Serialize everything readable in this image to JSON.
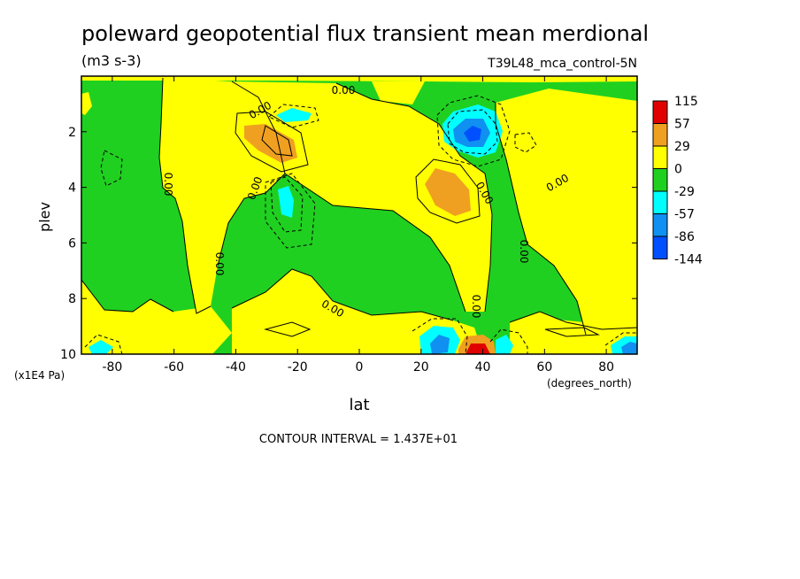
{
  "chart_data": {
    "type": "contour",
    "title": "poleward geopotential flux transient mean merdional",
    "units": "(m3 s-3)",
    "experiment": "T39L48_mca_control-5N",
    "xlabel": "lat",
    "xunits": "(degrees_north)",
    "ylabel": "plev",
    "yunits": "(x1E4 Pa)",
    "xlim": [
      -90,
      90
    ],
    "ylim": [
      0,
      10
    ],
    "yaxis_inverted": true,
    "xticks": [
      "-80",
      "-60",
      "-40",
      "-20",
      "0",
      "20",
      "40",
      "60",
      "80"
    ],
    "xtick_values": [
      -80,
      -60,
      -40,
      -20,
      0,
      20,
      40,
      60,
      80
    ],
    "yticks": [
      "2",
      "4",
      "6",
      "8",
      "10"
    ],
    "ytick_values": [
      2,
      4,
      6,
      8,
      10
    ],
    "contour_interval": "CONTOUR INTERVAL = 1.437E+01",
    "contour_label": "0.00",
    "colorbar": {
      "labels": [
        "115",
        "57",
        "29",
        "0",
        "-29",
        "-57",
        "-86",
        "-144"
      ],
      "colors": [
        "#e00000",
        "#f0a020",
        "#ffff00",
        "#20d020",
        "#00ffff",
        "#1090f0",
        "#0050ff"
      ]
    },
    "features": [
      {
        "sign": "positive",
        "lat": -27,
        "plev": 2.6,
        "peak": 43
      },
      {
        "sign": "positive",
        "lat": 30,
        "plev": 4.2,
        "peak": 43
      },
      {
        "sign": "positive",
        "lat": 40,
        "plev": 9.9,
        "peak": 115
      },
      {
        "sign": "negative",
        "lat": -20,
        "plev": 1.2,
        "peak": -40
      },
      {
        "sign": "negative",
        "lat": -25,
        "plev": 4.6,
        "peak": -45
      },
      {
        "sign": "negative",
        "lat": 35,
        "plev": 2.3,
        "peak": -100
      },
      {
        "sign": "negative",
        "lat": 30,
        "plev": 9.5,
        "peak": -60
      },
      {
        "sign": "negative",
        "lat": -80,
        "plev": 9.8,
        "peak": -35
      },
      {
        "sign": "negative",
        "lat": 85,
        "plev": 9.8,
        "peak": -45
      }
    ]
  }
}
